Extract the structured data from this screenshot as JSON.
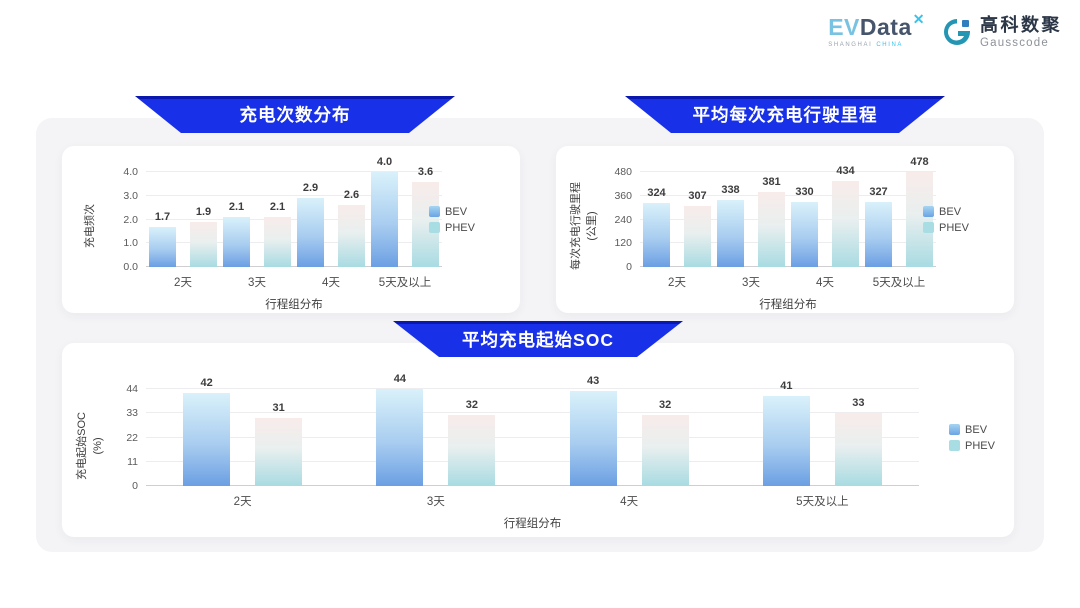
{
  "header": {
    "evdata": {
      "ev": "EV",
      "data": "Data",
      "mark": "✕",
      "sub_left": "SHANGHAI",
      "sub_right": "CHINA"
    },
    "gausscode": {
      "cn": "高科数聚",
      "en": "Gausscode"
    }
  },
  "colors": {
    "banner_blue": "#1830e8",
    "banner_edge": "#0a18ad",
    "board_bg": "#f4f4f6",
    "bev_top": "#d9f1fa",
    "bev_mid": "#a9cdf0",
    "bev_bottom": "#6b9fe3",
    "phev_top": "#f8ecea",
    "phev_mid": "#e9efef",
    "phev_bottom": "#a8dbe2",
    "legend_bev_top": "#a6d4f2",
    "legend_bev_bottom": "#6ba4e4",
    "legend_phev": "#a9dde4"
  },
  "chart_data": [
    {
      "type": "bar",
      "title": "充电次数分布",
      "categories": [
        "2天",
        "3天",
        "4天",
        "5天及以上"
      ],
      "series": [
        {
          "name": "BEV",
          "values": [
            1.7,
            2.1,
            2.9,
            4.0
          ],
          "labels": [
            "1.7",
            "2.1",
            "2.9",
            "4.0"
          ]
        },
        {
          "name": "PHEV",
          "values": [
            1.9,
            2.1,
            2.6,
            3.6
          ],
          "labels": [
            "1.9",
            "2.1",
            "2.6",
            "3.6"
          ]
        }
      ],
      "xlabel": "行程组分布",
      "ylabel": "充电频次",
      "ylabel_unit": "",
      "ylim": [
        0,
        4
      ],
      "yticks": [
        "0.0",
        "1.0",
        "2.0",
        "3.0",
        "4.0"
      ],
      "legend": [
        "BEV",
        "PHEV"
      ],
      "legend_position": "right",
      "grid": true
    },
    {
      "type": "bar",
      "title": "平均每次充电行驶里程",
      "categories": [
        "2天",
        "3天",
        "4天",
        "5天及以上"
      ],
      "series": [
        {
          "name": "BEV",
          "values": [
            324,
            338,
            330,
            327
          ],
          "labels": [
            "324",
            "338",
            "330",
            "327"
          ]
        },
        {
          "name": "PHEV",
          "values": [
            307,
            381,
            434,
            478
          ],
          "labels": [
            "307",
            "381",
            "434",
            "478"
          ]
        }
      ],
      "xlabel": "行程组分布",
      "ylabel": "每次充电行驶里程",
      "ylabel_unit": "(公里)",
      "ylim": [
        0,
        480
      ],
      "yticks": [
        "0",
        "120",
        "240",
        "360",
        "480"
      ],
      "legend": [
        "BEV",
        "PHEV"
      ],
      "legend_position": "right",
      "grid": true
    },
    {
      "type": "bar",
      "title": "平均充电起始SOC",
      "categories": [
        "2天",
        "3天",
        "4天",
        "5天及以上"
      ],
      "series": [
        {
          "name": "BEV",
          "values": [
            42,
            44,
            43,
            41
          ],
          "labels": [
            "42",
            "44",
            "43",
            "41"
          ]
        },
        {
          "name": "PHEV",
          "values": [
            31,
            32,
            32,
            33
          ],
          "labels": [
            "31",
            "32",
            "32",
            "33"
          ]
        }
      ],
      "xlabel": "行程组分布",
      "ylabel": "充电起始SOC",
      "ylabel_unit": "(%)",
      "ylim": [
        0,
        44
      ],
      "yticks": [
        "0",
        "11",
        "22",
        "33",
        "44"
      ],
      "legend": [
        "BEV",
        "PHEV"
      ],
      "legend_position": "right",
      "grid": true
    }
  ]
}
